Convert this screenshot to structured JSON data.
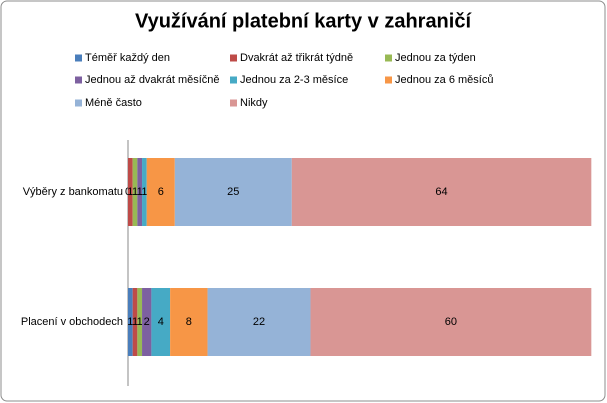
{
  "chart_data": {
    "type": "stacked-bar-horizontal",
    "title": "Využívání platební karty v zahraničí",
    "categories": [
      "Výběry z bankomatu",
      "Placení v obchodech"
    ],
    "series": [
      {
        "name": "Téměř každý den",
        "color": "#4a7ebb",
        "values": [
          0,
          1
        ]
      },
      {
        "name": "Dvakrát až třikrát týdně",
        "color": "#be4b48",
        "values": [
          1,
          1
        ]
      },
      {
        "name": "Jednou za týden",
        "color": "#98b954",
        "values": [
          1,
          1
        ]
      },
      {
        "name": "Jednou až dvakrát měsíčně",
        "color": "#7d60a0",
        "values": [
          1,
          2
        ]
      },
      {
        "name": "Jednou za 2-3 měsíce",
        "color": "#46aac5",
        "values": [
          1,
          4
        ]
      },
      {
        "name": "Jednou za 6 měsíců",
        "color": "#f79646",
        "values": [
          6,
          8
        ]
      },
      {
        "name": "Méně často",
        "color": "#95b3d7",
        "values": [
          25,
          22
        ]
      },
      {
        "name": "Nikdy",
        "color": "#d99694",
        "values": [
          64,
          60
        ]
      }
    ],
    "xlim": [
      0,
      100
    ]
  }
}
